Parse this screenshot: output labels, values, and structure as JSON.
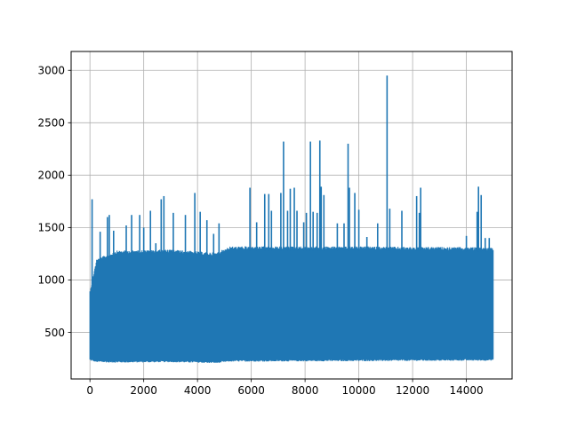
{
  "chart_data": {
    "type": "line",
    "title": "",
    "xlabel": "",
    "ylabel": "",
    "xlim": [
      -700,
      15700
    ],
    "ylim": [
      55,
      3180
    ],
    "xticks": [
      0,
      2000,
      4000,
      6000,
      8000,
      10000,
      12000,
      14000
    ],
    "xtick_labels": [
      "0",
      "2000",
      "4000",
      "6000",
      "8000",
      "10000",
      "12000",
      "14000"
    ],
    "yticks": [
      500,
      1000,
      1500,
      2000,
      2500,
      3000
    ],
    "ytick_labels": [
      "500",
      "1000",
      "1500",
      "2000",
      "2500",
      "3000"
    ],
    "grid": true,
    "legend": "none",
    "series": [
      {
        "color": "#1f77b4",
        "n_points": 15000,
        "x_range": [
          0,
          15000
        ],
        "band": [
          {
            "x": 0,
            "lo": 230,
            "hi": 900
          },
          {
            "x": 250,
            "lo": 215,
            "hi": 1200
          },
          {
            "x": 1000,
            "lo": 210,
            "hi": 1280
          },
          {
            "x": 3000,
            "lo": 215,
            "hi": 1290
          },
          {
            "x": 4700,
            "lo": 205,
            "hi": 1260
          },
          {
            "x": 5200,
            "lo": 220,
            "hi": 1320
          },
          {
            "x": 10000,
            "lo": 225,
            "hi": 1320
          },
          {
            "x": 15000,
            "lo": 230,
            "hi": 1310
          }
        ],
        "spikes": [
          {
            "x": 80,
            "y": 1770
          },
          {
            "x": 380,
            "y": 1460
          },
          {
            "x": 650,
            "y": 1600
          },
          {
            "x": 720,
            "y": 1620
          },
          {
            "x": 880,
            "y": 1470
          },
          {
            "x": 1350,
            "y": 1520
          },
          {
            "x": 1550,
            "y": 1620
          },
          {
            "x": 1850,
            "y": 1620
          },
          {
            "x": 2000,
            "y": 1500
          },
          {
            "x": 2250,
            "y": 1660
          },
          {
            "x": 2450,
            "y": 1350
          },
          {
            "x": 2650,
            "y": 1770
          },
          {
            "x": 2750,
            "y": 1800
          },
          {
            "x": 3100,
            "y": 1640
          },
          {
            "x": 3550,
            "y": 1620
          },
          {
            "x": 3900,
            "y": 1830
          },
          {
            "x": 4100,
            "y": 1650
          },
          {
            "x": 4350,
            "y": 1570
          },
          {
            "x": 4600,
            "y": 1440
          },
          {
            "x": 4800,
            "y": 1540
          },
          {
            "x": 5950,
            "y": 1880
          },
          {
            "x": 6200,
            "y": 1550
          },
          {
            "x": 6500,
            "y": 1820
          },
          {
            "x": 6650,
            "y": 1820
          },
          {
            "x": 6750,
            "y": 1660
          },
          {
            "x": 7100,
            "y": 1830
          },
          {
            "x": 7200,
            "y": 2320
          },
          {
            "x": 7350,
            "y": 1660
          },
          {
            "x": 7450,
            "y": 1870
          },
          {
            "x": 7600,
            "y": 1880
          },
          {
            "x": 7700,
            "y": 1660
          },
          {
            "x": 7950,
            "y": 1550
          },
          {
            "x": 8050,
            "y": 1640
          },
          {
            "x": 8200,
            "y": 2320
          },
          {
            "x": 8300,
            "y": 1650
          },
          {
            "x": 8450,
            "y": 1640
          },
          {
            "x": 8550,
            "y": 2330
          },
          {
            "x": 8600,
            "y": 1890
          },
          {
            "x": 8700,
            "y": 1810
          },
          {
            "x": 9200,
            "y": 1540
          },
          {
            "x": 9450,
            "y": 1540
          },
          {
            "x": 9600,
            "y": 2300
          },
          {
            "x": 9650,
            "y": 1880
          },
          {
            "x": 9850,
            "y": 1830
          },
          {
            "x": 10000,
            "y": 1670
          },
          {
            "x": 10300,
            "y": 1410
          },
          {
            "x": 10700,
            "y": 1540
          },
          {
            "x": 11050,
            "y": 2950
          },
          {
            "x": 11150,
            "y": 1680
          },
          {
            "x": 11600,
            "y": 1660
          },
          {
            "x": 12150,
            "y": 1800
          },
          {
            "x": 12250,
            "y": 1640
          },
          {
            "x": 12300,
            "y": 1880
          },
          {
            "x": 14000,
            "y": 1420
          },
          {
            "x": 14400,
            "y": 1650
          },
          {
            "x": 14450,
            "y": 1890
          },
          {
            "x": 14550,
            "y": 1810
          },
          {
            "x": 14700,
            "y": 1400
          },
          {
            "x": 14850,
            "y": 1400
          }
        ]
      }
    ]
  }
}
